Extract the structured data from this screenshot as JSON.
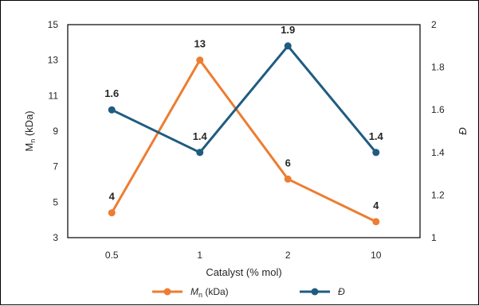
{
  "chart_data": {
    "type": "line",
    "categories": [
      "0.5",
      "1",
      "2",
      "10"
    ],
    "series": [
      {
        "name": "Mn (kDa)",
        "name_main": "M",
        "name_sub": "n",
        "name_suffix": " (kDa)",
        "axis": "left",
        "color": "#ED7D31",
        "values": [
          4.4,
          13.0,
          6.3,
          3.9
        ],
        "labels": [
          "4",
          "13",
          "6",
          "4"
        ]
      },
      {
        "name": "Đ",
        "axis": "right",
        "color": "#1F5C80",
        "values": [
          1.6,
          1.4,
          1.9,
          1.4
        ],
        "labels": [
          "1.6",
          "1.4",
          "1.9",
          "1.4"
        ]
      }
    ],
    "xlabel": "Catalyst (% mol)",
    "ylabel_left": {
      "main": "M",
      "sub": "n",
      "suffix": " (kDa)"
    },
    "ylabel_right": "Đ",
    "ylim_left": [
      3,
      15
    ],
    "yticks_left": [
      "3",
      "5",
      "7",
      "9",
      "11",
      "13",
      "15"
    ],
    "ylim_right": [
      1,
      2
    ],
    "yticks_right": [
      "1",
      "1.2",
      "1.4",
      "1.6",
      "1.8",
      "2"
    ],
    "grid": false,
    "legend": "bottom"
  }
}
